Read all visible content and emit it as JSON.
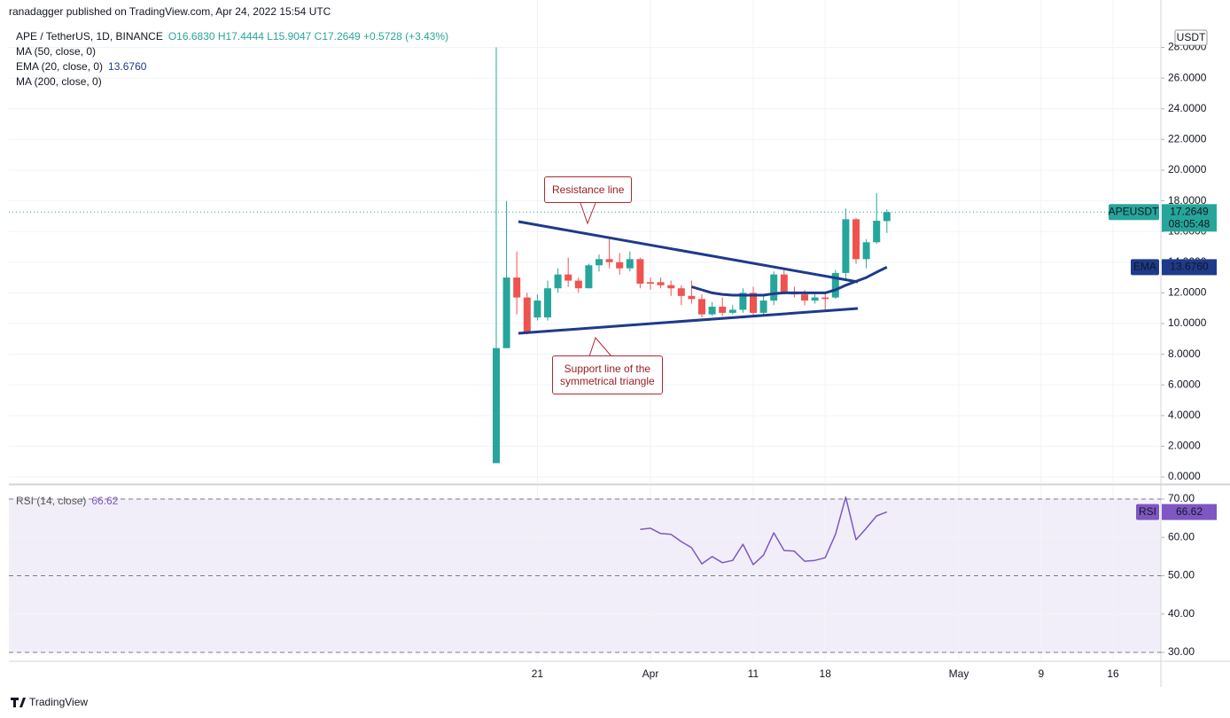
{
  "header": {
    "published": "ranadagger published on TradingView.com, Apr 24, 2022 15:54 UTC"
  },
  "footer": {
    "brand": "TradingView"
  },
  "chart_data": [
    {
      "type": "candlestick",
      "title": "APE / TetherUS, 1D, BINANCE",
      "quote": "O16.6830 H17.4444 L15.9047 C17.2649 +0.5728 (+3.43%)",
      "symbol": "APEUSDT",
      "price_label": "17.2649",
      "countdown": "08:05:48",
      "currency": "USDT",
      "up_color": "#26a69a",
      "down_color": "#ef5350",
      "categories": [
        null,
        null,
        null,
        null,
        "21",
        null,
        null,
        null,
        null,
        null,
        null,
        null,
        null,
        null,
        null,
        "Apr",
        null,
        null,
        null,
        null,
        null,
        null,
        null,
        null,
        null,
        "11",
        null,
        null,
        null,
        null,
        null,
        null,
        "18",
        null,
        null,
        null,
        null,
        null,
        null,
        null,
        null,
        null,
        null,
        null,
        null,
        "May",
        null,
        null,
        null,
        null,
        null,
        null,
        null,
        "9",
        null,
        null,
        null,
        null,
        null,
        null,
        "16",
        null,
        null,
        null,
        null
      ],
      "open": [
        0.9,
        8.4,
        13.0,
        11.7,
        10.4,
        10.4,
        12.3,
        13.2,
        12.8,
        12.3,
        13.8,
        14.2,
        14.0,
        13.6,
        14.2,
        12.7,
        12.7,
        12.5,
        12.3,
        11.8,
        11.6,
        10.6,
        11.1,
        10.7,
        10.9,
        12.0,
        10.7,
        11.5,
        13.2,
        12.0,
        11.9,
        11.5,
        11.7,
        11.7,
        13.3,
        16.8,
        14.2,
        15.3,
        16.683,
        null,
        null,
        null,
        null,
        null,
        null,
        null,
        null,
        null,
        null,
        null,
        null,
        null,
        null,
        null,
        null,
        null,
        null,
        null,
        null,
        null,
        null,
        null,
        null,
        null,
        null
      ],
      "high": [
        28.0,
        18.0,
        14.7,
        12.0,
        11.9,
        12.8,
        13.6,
        14.3,
        13.0,
        13.9,
        14.5,
        15.5,
        14.6,
        14.7,
        14.3,
        13.0,
        13.0,
        12.8,
        12.5,
        12.8,
        11.9,
        11.4,
        11.7,
        11.2,
        12.3,
        12.4,
        11.9,
        13.4,
        13.6,
        12.4,
        12.2,
        12.0,
        12.0,
        13.5,
        17.5,
        16.9,
        15.5,
        18.5,
        17.4444,
        null,
        null,
        null,
        null,
        null,
        null,
        null,
        null,
        null,
        null,
        null,
        null,
        null,
        null,
        null,
        null,
        null,
        null,
        null,
        null,
        null,
        null,
        null,
        null,
        null,
        null
      ],
      "low": [
        0.9,
        8.4,
        10.6,
        9.3,
        10.2,
        10.2,
        12.0,
        12.4,
        12.0,
        12.3,
        13.4,
        13.6,
        13.2,
        13.4,
        12.3,
        12.2,
        12.3,
        11.8,
        11.2,
        11.3,
        10.4,
        10.5,
        10.5,
        10.6,
        10.7,
        10.5,
        10.5,
        11.2,
        11.9,
        11.7,
        11.2,
        11.3,
        10.9,
        11.6,
        12.9,
        13.9,
        13.6,
        15.2,
        15.9047,
        null,
        null,
        null,
        null,
        null,
        null,
        null,
        null,
        null,
        null,
        null,
        null,
        null,
        null,
        null,
        null,
        null,
        null,
        null,
        null,
        null,
        null,
        null,
        null,
        null,
        null
      ],
      "close": [
        8.4,
        13.0,
        11.7,
        9.4,
        11.5,
        12.3,
        13.2,
        12.8,
        12.3,
        13.8,
        14.2,
        14.0,
        13.6,
        14.2,
        12.6,
        12.6,
        12.5,
        12.3,
        11.8,
        11.6,
        10.6,
        11.1,
        10.7,
        10.9,
        12.0,
        10.7,
        11.5,
        13.2,
        12.0,
        11.9,
        11.5,
        11.7,
        11.6,
        13.3,
        16.8,
        14.2,
        15.3,
        16.7,
        17.2649,
        null,
        null,
        null,
        null,
        null,
        null,
        null,
        null,
        null,
        null,
        null,
        null,
        null,
        null,
        null,
        null,
        null,
        null,
        null,
        null,
        null,
        null,
        null,
        null,
        null,
        null
      ],
      "indicators": [
        {
          "name": "MA (50, close, 0)"
        },
        {
          "name": "EMA (20, close, 0)",
          "value_label": "13.6760",
          "tag": "EMA",
          "color": "#1e3a8a",
          "values": [
            null,
            null,
            null,
            null,
            null,
            null,
            null,
            null,
            null,
            null,
            null,
            null,
            null,
            null,
            null,
            null,
            null,
            null,
            null,
            12.4,
            12.2,
            12.0,
            11.9,
            11.85,
            11.85,
            11.85,
            11.85,
            11.95,
            12.0,
            12.0,
            12.0,
            12.0,
            12.0,
            12.2,
            12.5,
            12.75,
            13.0,
            13.35,
            13.676,
            null,
            null,
            null,
            null,
            null,
            null,
            null,
            null,
            null,
            null,
            null,
            null,
            null,
            null,
            null,
            null,
            null,
            null,
            null,
            null,
            null,
            null,
            null,
            null,
            null,
            null
          ]
        },
        {
          "name": "MA (200, close, 0)"
        }
      ],
      "annotations": [
        "Resistance line",
        "Support line of the\nsymmetrical triangle"
      ],
      "ylim": [
        -0.4,
        29.36
      ],
      "yticks": [
        {
          "value": 0,
          "label": "0.0000"
        },
        {
          "value": 2,
          "label": "2.0000"
        },
        {
          "value": 4,
          "label": "4.0000"
        },
        {
          "value": 6,
          "label": "6.0000"
        },
        {
          "value": 8,
          "label": "8.0000"
        },
        {
          "value": 10,
          "label": "10.0000"
        },
        {
          "value": 12,
          "label": "12.0000"
        },
        {
          "value": 14,
          "label": "14.0000"
        },
        {
          "value": 16,
          "label": "16.0000"
        },
        {
          "value": 18,
          "label": "18.0000"
        },
        {
          "value": 20,
          "label": "20.0000"
        },
        {
          "value": 22,
          "label": "22.0000"
        },
        {
          "value": 24,
          "label": "24.0000"
        },
        {
          "value": 26,
          "label": "26.0000"
        },
        {
          "value": 28,
          "label": "28.0000"
        }
      ],
      "grid": true
    },
    {
      "type": "line",
      "series": [
        {
          "name": "RSI (14, close)",
          "value_label": "66.62",
          "tag": "RSI",
          "color": "#7e57c2",
          "values": [
            null,
            null,
            null,
            null,
            null,
            null,
            null,
            null,
            null,
            null,
            null,
            null,
            null,
            null,
            62.1,
            62.4,
            61.0,
            60.8,
            58.9,
            57.3,
            53.1,
            55.0,
            53.4,
            54.0,
            58.2,
            52.9,
            55.4,
            61.2,
            56.6,
            56.4,
            53.8,
            54.0,
            54.7,
            60.8,
            70.5,
            59.4,
            62.4,
            65.6,
            66.62,
            null,
            null,
            null,
            null,
            null,
            null,
            null,
            null,
            null,
            null,
            null,
            null,
            null,
            null,
            null,
            null,
            null,
            null,
            null,
            null,
            null,
            null,
            null,
            null,
            null,
            null
          ]
        }
      ],
      "band": [
        30,
        70
      ],
      "levels": [
        30,
        50,
        70
      ],
      "ylim": [
        27.92,
        73.47
      ],
      "yticks": [
        {
          "value": 30,
          "label": "30.00"
        },
        {
          "value": 40,
          "label": "40.00"
        },
        {
          "value": 50,
          "label": "50.00"
        },
        {
          "value": 60,
          "label": "60.00"
        },
        {
          "value": 70,
          "label": "70.00"
        }
      ],
      "grid": true
    }
  ]
}
